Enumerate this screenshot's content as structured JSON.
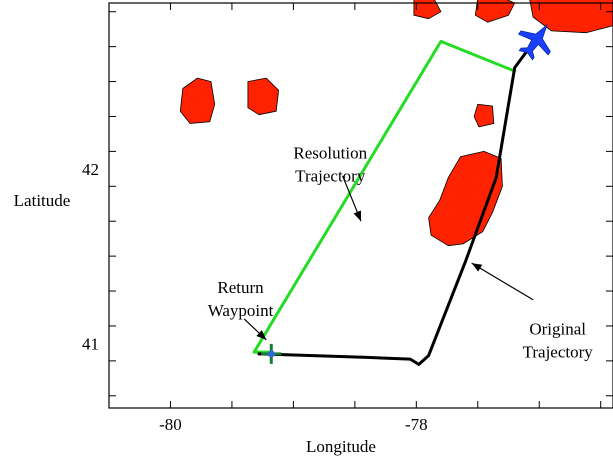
{
  "chart_data": {
    "type": "line",
    "title": "",
    "xlabel": "Longitude",
    "ylabel": "Latitude",
    "xlim": [
      -80.5,
      -76.4
    ],
    "ylim": [
      40.63,
      42.95
    ],
    "x_ticks": [
      -80,
      -78
    ],
    "x_tick_labels": [
      "-80",
      "-78"
    ],
    "y_ticks": [
      41,
      42
    ],
    "y_tick_labels": [
      "41",
      "42"
    ],
    "grid": false,
    "series": [
      {
        "key": "resolution",
        "color": "#22dd22",
        "points": [
          [
            -79.18,
            40.95
          ],
          [
            -79.32,
            40.95
          ],
          [
            -77.8,
            42.73
          ],
          [
            -77.2,
            42.56
          ]
        ]
      },
      {
        "key": "original",
        "color": "#000000",
        "points": [
          [
            -79.28,
            40.94
          ],
          [
            -78.4,
            40.92
          ],
          [
            -78.05,
            40.91
          ],
          [
            -77.98,
            40.88
          ],
          [
            -77.9,
            40.93
          ],
          [
            -77.6,
            41.47
          ],
          [
            -77.35,
            41.95
          ],
          [
            -77.2,
            42.58
          ],
          [
            -77.02,
            42.75
          ]
        ]
      }
    ],
    "obstacles": [
      {
        "color": "#ff2200",
        "points": [
          [
            -79.9,
            42.46
          ],
          [
            -79.78,
            42.52
          ],
          [
            -79.67,
            42.5
          ],
          [
            -79.64,
            42.37
          ],
          [
            -79.68,
            42.27
          ],
          [
            -79.84,
            42.26
          ],
          [
            -79.92,
            42.33
          ]
        ]
      },
      {
        "color": "#ff2200",
        "points": [
          [
            -79.37,
            42.5
          ],
          [
            -79.22,
            42.52
          ],
          [
            -79.12,
            42.45
          ],
          [
            -79.14,
            42.33
          ],
          [
            -79.28,
            42.31
          ],
          [
            -79.37,
            42.35
          ]
        ]
      },
      {
        "color": "#ff2200",
        "points": [
          [
            -77.5,
            42.37
          ],
          [
            -77.38,
            42.36
          ],
          [
            -77.37,
            42.26
          ],
          [
            -77.49,
            42.24
          ],
          [
            -77.53,
            42.3
          ]
        ]
      },
      {
        "color": "#ff2200",
        "points": [
          [
            -77.64,
            42.07
          ],
          [
            -77.45,
            42.1
          ],
          [
            -77.31,
            42.06
          ],
          [
            -77.3,
            41.9
          ],
          [
            -77.38,
            41.75
          ],
          [
            -77.46,
            41.64
          ],
          [
            -77.62,
            41.57
          ],
          [
            -77.74,
            41.56
          ],
          [
            -77.88,
            41.62
          ],
          [
            -77.9,
            41.72
          ],
          [
            -77.81,
            41.82
          ],
          [
            -77.74,
            41.95
          ]
        ]
      },
      {
        "color": "#ff2200",
        "points": [
          [
            -78.02,
            42.98
          ],
          [
            -77.86,
            42.98
          ],
          [
            -77.8,
            42.9
          ],
          [
            -77.9,
            42.86
          ],
          [
            -78.02,
            42.88
          ]
        ]
      },
      {
        "color": "#ff2200",
        "points": [
          [
            -77.3,
            42.98
          ],
          [
            -77.2,
            42.95
          ],
          [
            -77.25,
            42.88
          ],
          [
            -77.42,
            42.84
          ],
          [
            -77.52,
            42.88
          ],
          [
            -77.5,
            42.98
          ]
        ]
      },
      {
        "color": "#ff2200",
        "points": [
          [
            -77.08,
            42.98
          ],
          [
            -76.4,
            42.98
          ],
          [
            -76.4,
            42.82
          ],
          [
            -76.62,
            42.78
          ],
          [
            -76.9,
            42.79
          ],
          [
            -77.05,
            42.87
          ]
        ]
      }
    ],
    "aircraft": {
      "position": [
        -77.02,
        42.74
      ],
      "color": "#1a3fff"
    },
    "waypoint_marker": {
      "position": [
        -79.18,
        40.94
      ],
      "color": "#1a7a3a"
    },
    "annotations": [
      {
        "lines": [
          "Resolution",
          "Trajectory"
        ],
        "text_pos": [
          -78.7,
          42.06
        ],
        "arrow_from": [
          -78.6,
          41.96
        ],
        "arrow_to": [
          -78.45,
          41.7
        ]
      },
      {
        "lines": [
          "Return",
          "Waypoint"
        ],
        "text_pos": [
          -79.43,
          41.29
        ],
        "arrow_from": [
          -79.4,
          41.14
        ],
        "arrow_to": [
          -79.22,
          41.02
        ]
      },
      {
        "lines": [
          "Original",
          "Trajectory"
        ],
        "text_pos": [
          -76.85,
          41.05
        ],
        "arrow_from": [
          -77.05,
          41.25
        ],
        "arrow_to": [
          -77.55,
          41.46
        ]
      }
    ]
  }
}
